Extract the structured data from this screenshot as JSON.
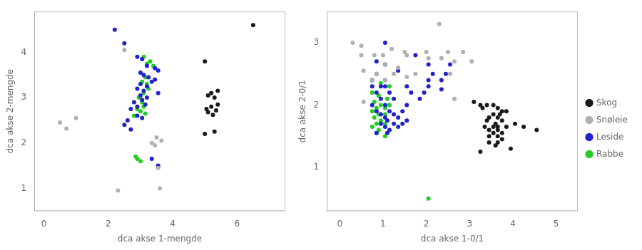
{
  "chart_data": [
    {
      "type": "scatter",
      "xlabel": "dca akse 1-mengde",
      "ylabel": "dca akse 2-mengde",
      "xlim": [
        -0.3,
        7.5
      ],
      "ylim": [
        0.5,
        4.9
      ],
      "xticks": [
        0,
        2,
        4,
        6
      ],
      "yticks": [
        1,
        2,
        3,
        4
      ],
      "grid": false,
      "series": [
        {
          "name": "Skog",
          "color": "#1a1a1a",
          "values": [
            [
              6.5,
              4.6
            ],
            [
              5.0,
              3.8
            ],
            [
              5.2,
              3.1
            ],
            [
              5.4,
              3.15
            ],
            [
              5.1,
              3.05
            ],
            [
              5.3,
              3.0
            ],
            [
              5.4,
              2.85
            ],
            [
              5.2,
              2.8
            ],
            [
              5.05,
              2.75
            ],
            [
              5.35,
              2.72
            ],
            [
              5.1,
              2.68
            ],
            [
              5.25,
              2.62
            ],
            [
              5.3,
              2.25
            ],
            [
              5.0,
              2.2
            ]
          ]
        },
        {
          "name": "Snøleie",
          "color": "#b0b0b0",
          "values": [
            [
              0.5,
              2.45
            ],
            [
              1.0,
              2.55
            ],
            [
              0.7,
              2.32
            ],
            [
              2.5,
              4.05
            ],
            [
              3.5,
              2.12
            ],
            [
              3.65,
              2.05
            ],
            [
              3.35,
              2.0
            ],
            [
              3.45,
              1.95
            ],
            [
              3.55,
              1.45
            ],
            [
              3.6,
              1.0
            ],
            [
              2.3,
              0.95
            ]
          ]
        },
        {
          "name": "Leside",
          "color": "#2222cc",
          "values": [
            [
              2.2,
              4.5
            ],
            [
              2.5,
              4.2
            ],
            [
              2.9,
              3.9
            ],
            [
              3.05,
              3.85
            ],
            [
              3.2,
              3.7
            ],
            [
              3.45,
              3.65
            ],
            [
              3.55,
              3.6
            ],
            [
              3.0,
              3.55
            ],
            [
              3.1,
              3.5
            ],
            [
              3.25,
              3.45
            ],
            [
              3.45,
              3.4
            ],
            [
              3.35,
              3.35
            ],
            [
              3.0,
              3.3
            ],
            [
              3.2,
              3.25
            ],
            [
              2.9,
              3.2
            ],
            [
              3.1,
              3.15
            ],
            [
              3.55,
              3.1
            ],
            [
              3.0,
              3.05
            ],
            [
              3.2,
              3.0
            ],
            [
              3.05,
              2.95
            ],
            [
              2.8,
              2.9
            ],
            [
              3.15,
              2.85
            ],
            [
              2.9,
              2.8
            ],
            [
              2.7,
              2.75
            ],
            [
              2.9,
              2.6
            ],
            [
              3.05,
              2.55
            ],
            [
              2.6,
              2.5
            ],
            [
              2.5,
              2.4
            ],
            [
              2.7,
              2.3
            ],
            [
              3.55,
              1.5
            ],
            [
              3.35,
              1.65
            ]
          ]
        },
        {
          "name": "Rabbe",
          "color": "#22cc22",
          "values": [
            [
              3.1,
              3.9
            ],
            [
              3.3,
              3.8
            ],
            [
              3.2,
              3.75
            ],
            [
              3.4,
              3.7
            ],
            [
              3.15,
              3.45
            ],
            [
              3.05,
              3.35
            ],
            [
              3.2,
              3.3
            ],
            [
              3.25,
              3.2
            ],
            [
              3.1,
              3.1
            ],
            [
              2.95,
              3.0
            ],
            [
              3.05,
              2.9
            ],
            [
              3.1,
              2.8
            ],
            [
              2.9,
              2.75
            ],
            [
              3.0,
              2.7
            ],
            [
              3.15,
              2.65
            ],
            [
              2.8,
              2.6
            ],
            [
              2.9,
              1.65
            ],
            [
              3.0,
              1.6
            ],
            [
              2.85,
              1.7
            ]
          ]
        }
      ]
    },
    {
      "type": "scatter",
      "xlabel": "dca akse 1-0/1",
      "ylabel": "dca akse 2-0/1",
      "xlim": [
        -0.3,
        5.5
      ],
      "ylim": [
        0.3,
        3.5
      ],
      "xticks": [
        0,
        1,
        2,
        3,
        4,
        5
      ],
      "yticks": [
        1,
        2,
        3
      ],
      "grid": false,
      "legend": "right",
      "series": [
        {
          "name": "Skog",
          "color": "#1a1a1a",
          "values": [
            [
              3.1,
              2.05
            ],
            [
              3.25,
              2.0
            ],
            [
              3.4,
              2.0
            ],
            [
              3.55,
              2.0
            ],
            [
              3.3,
              1.95
            ],
            [
              3.65,
              1.95
            ],
            [
              3.75,
              1.9
            ],
            [
              3.85,
              1.9
            ],
            [
              3.55,
              1.85
            ],
            [
              3.7,
              1.85
            ],
            [
              3.45,
              1.8
            ],
            [
              3.65,
              1.8
            ],
            [
              3.4,
              1.75
            ],
            [
              3.75,
              1.75
            ],
            [
              3.6,
              1.7
            ],
            [
              3.35,
              1.65
            ],
            [
              3.55,
              1.65
            ],
            [
              3.65,
              1.65
            ],
            [
              3.85,
              1.65
            ],
            [
              3.45,
              1.6
            ],
            [
              3.65,
              1.6
            ],
            [
              3.75,
              1.55
            ],
            [
              3.55,
              1.55
            ],
            [
              3.45,
              1.5
            ],
            [
              3.65,
              1.5
            ],
            [
              3.75,
              1.45
            ],
            [
              4.05,
              1.7
            ],
            [
              4.25,
              1.65
            ],
            [
              4.55,
              1.6
            ],
            [
              3.45,
              1.4
            ],
            [
              3.65,
              1.4
            ],
            [
              3.6,
              1.35
            ],
            [
              3.95,
              1.3
            ],
            [
              3.25,
              1.25
            ]
          ]
        },
        {
          "name": "Snøleie",
          "color": "#b0b0b0",
          "values": [
            [
              2.3,
              3.3
            ],
            [
              0.3,
              3.0
            ],
            [
              0.5,
              2.95
            ],
            [
              1.2,
              2.9
            ],
            [
              1.5,
              2.85
            ],
            [
              2.0,
              2.85
            ],
            [
              2.5,
              2.85
            ],
            [
              2.85,
              2.85
            ],
            [
              0.5,
              2.8
            ],
            [
              0.8,
              2.8
            ],
            [
              1.0,
              2.8
            ],
            [
              1.55,
              2.8
            ],
            [
              2.05,
              2.75
            ],
            [
              2.35,
              2.75
            ],
            [
              2.65,
              2.7
            ],
            [
              3.05,
              2.7
            ],
            [
              1.05,
              2.65
            ],
            [
              1.35,
              2.6
            ],
            [
              0.55,
              2.55
            ],
            [
              0.85,
              2.5
            ],
            [
              1.25,
              2.5
            ],
            [
              1.75,
              2.5
            ],
            [
              2.55,
              2.5
            ],
            [
              1.55,
              2.45
            ],
            [
              0.75,
              2.4
            ],
            [
              1.05,
              2.4
            ],
            [
              2.65,
              2.1
            ],
            [
              0.55,
              2.05
            ]
          ]
        },
        {
          "name": "Leside",
          "color": "#2222cc",
          "values": [
            [
              1.05,
              3.0
            ],
            [
              1.75,
              2.8
            ],
            [
              0.85,
              2.7
            ],
            [
              1.05,
              2.65
            ],
            [
              2.05,
              2.65
            ],
            [
              2.55,
              2.65
            ],
            [
              1.35,
              2.55
            ],
            [
              0.85,
              2.5
            ],
            [
              2.15,
              2.5
            ],
            [
              2.45,
              2.5
            ],
            [
              0.75,
              2.4
            ],
            [
              1.05,
              2.4
            ],
            [
              2.05,
              2.4
            ],
            [
              2.35,
              2.4
            ],
            [
              0.75,
              2.3
            ],
            [
              0.95,
              2.3
            ],
            [
              1.05,
              2.3
            ],
            [
              1.55,
              2.3
            ],
            [
              2.05,
              2.3
            ],
            [
              2.35,
              2.25
            ],
            [
              0.85,
              2.2
            ],
            [
              1.15,
              2.2
            ],
            [
              1.65,
              2.2
            ],
            [
              1.95,
              2.2
            ],
            [
              0.95,
              2.1
            ],
            [
              1.25,
              2.1
            ],
            [
              1.85,
              2.1
            ],
            [
              0.75,
              2.0
            ],
            [
              1.05,
              2.0
            ],
            [
              1.55,
              2.0
            ],
            [
              0.85,
              1.9
            ],
            [
              1.15,
              1.9
            ],
            [
              1.45,
              1.9
            ],
            [
              0.95,
              1.85
            ],
            [
              1.25,
              1.85
            ],
            [
              1.05,
              1.8
            ],
            [
              1.35,
              1.8
            ],
            [
              1.1,
              1.75
            ],
            [
              1.55,
              1.75
            ],
            [
              0.95,
              1.7
            ],
            [
              1.25,
              1.7
            ],
            [
              1.45,
              1.7
            ],
            [
              1.05,
              1.65
            ],
            [
              1.35,
              1.65
            ],
            [
              1.15,
              1.6
            ],
            [
              0.85,
              1.55
            ],
            [
              1.1,
              1.55
            ]
          ]
        },
        {
          "name": "Rabbe",
          "color": "#22cc22",
          "values": [
            [
              0.75,
              2.4
            ],
            [
              0.95,
              2.35
            ],
            [
              1.15,
              2.3
            ],
            [
              0.75,
              2.2
            ],
            [
              0.9,
              2.15
            ],
            [
              1.1,
              2.1
            ],
            [
              0.8,
              2.05
            ],
            [
              0.95,
              2.0
            ],
            [
              1.15,
              2.0
            ],
            [
              0.85,
              1.95
            ],
            [
              1.05,
              1.95
            ],
            [
              0.75,
              1.9
            ],
            [
              0.9,
              1.85
            ],
            [
              1.05,
              1.85
            ],
            [
              0.8,
              1.8
            ],
            [
              0.95,
              1.75
            ],
            [
              0.85,
              1.7
            ],
            [
              1.05,
              1.7
            ],
            [
              0.75,
              1.65
            ],
            [
              0.9,
              1.6
            ],
            [
              0.85,
              1.55
            ],
            [
              1.05,
              1.5
            ],
            [
              2.05,
              0.5
            ]
          ]
        }
      ]
    }
  ]
}
